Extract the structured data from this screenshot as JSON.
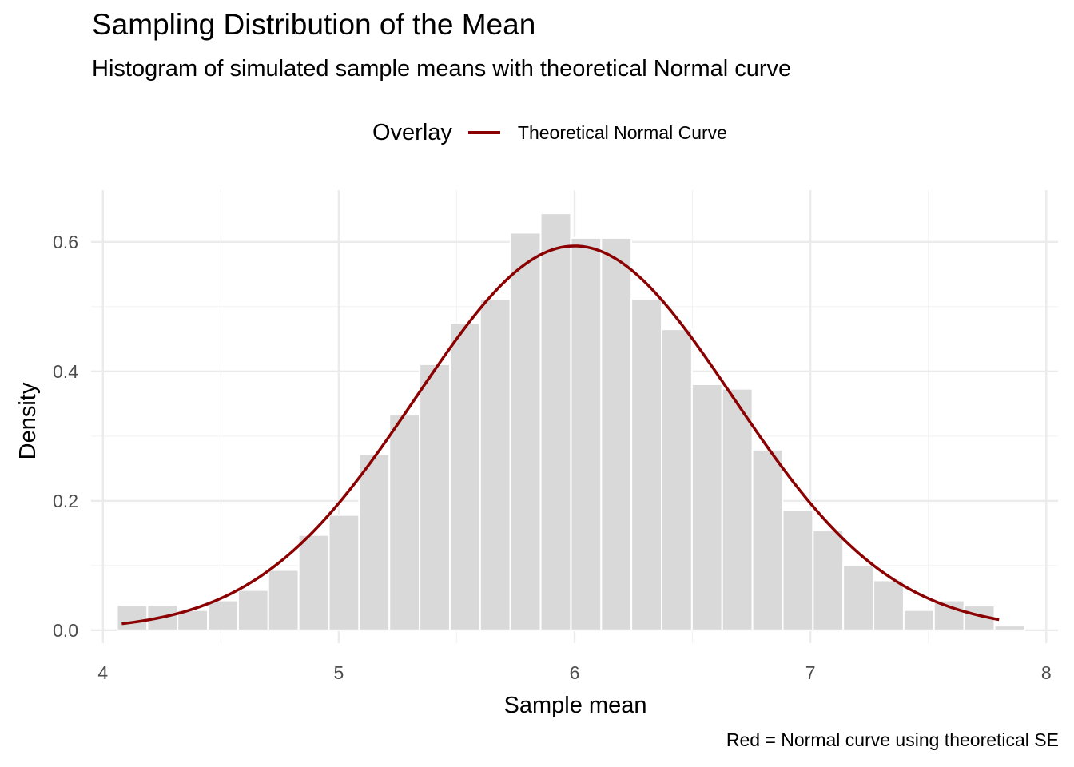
{
  "title": "Sampling Distribution of the Mean",
  "subtitle": "Histogram of simulated sample means with theoretical Normal curve",
  "caption": "Red = Normal curve using theoretical SE",
  "legend": {
    "title": "Overlay",
    "items": [
      {
        "label": "Theoretical Normal Curve",
        "color": "#8B0000"
      }
    ]
  },
  "colors": {
    "bar_fill": "#D9D9D9",
    "bar_outline": "#FFFFFF",
    "curve": "#8B0000",
    "grid_major": "#EBEBEB",
    "grid_minor": "#F3F3F3"
  },
  "chart_data": {
    "type": "bar",
    "subtype": "histogram with line overlay",
    "title": "Sampling Distribution of the Mean",
    "subtitle": "Histogram of simulated sample means with theoretical Normal curve",
    "xlabel": "Sample mean",
    "ylabel": "Density",
    "caption": "Red = Normal curve using theoretical SE",
    "xlim": [
      3.95,
      8.05
    ],
    "ylim": [
      -0.02,
      0.68
    ],
    "x_ticks": [
      4,
      5,
      6,
      7,
      8
    ],
    "x_tick_labels": [
      "4",
      "5",
      "6",
      "7",
      "8"
    ],
    "y_ticks": [
      0.0,
      0.2,
      0.4,
      0.6
    ],
    "y_tick_labels": [
      "0.0",
      "0.2",
      "0.4",
      "0.6"
    ],
    "grid": true,
    "legend_position": "top",
    "histogram": {
      "bin_start": 4.06,
      "bin_width": 0.1283,
      "densities": [
        0.039,
        0.039,
        0.031,
        0.046,
        0.062,
        0.093,
        0.147,
        0.178,
        0.272,
        0.333,
        0.411,
        0.474,
        0.512,
        0.614,
        0.644,
        0.606,
        0.606,
        0.512,
        0.465,
        0.38,
        0.373,
        0.279,
        0.186,
        0.154,
        0.1,
        0.077,
        0.031,
        0.046,
        0.038,
        0.007
      ]
    },
    "series": [
      {
        "name": "Theoretical Normal Curve",
        "type": "line",
        "distribution": "normal",
        "mean": 6.0,
        "sd": 0.672,
        "x_range": [
          4.08,
          7.8
        ],
        "color": "#8B0000"
      }
    ]
  }
}
